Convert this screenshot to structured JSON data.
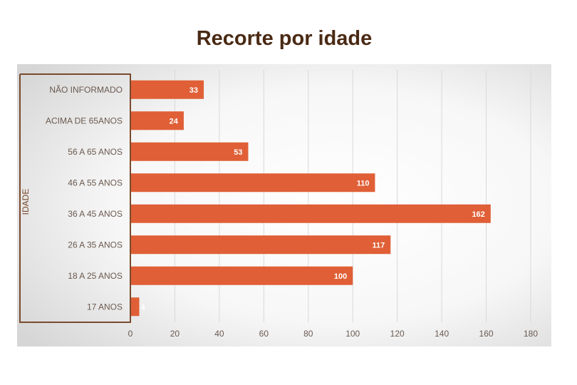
{
  "colors": {
    "bar": "#e05f36",
    "axis": "#7a4a2e",
    "title": "#4a2a14",
    "label": "#6b5a50",
    "grid": "#d9d9d9",
    "bar_label": "#ffffff"
  },
  "chart_data": {
    "type": "bar",
    "orientation": "horizontal",
    "title": "Recorte por idade",
    "ylabel": "IDADE",
    "xlabel": "",
    "categories": [
      "NÃO INFORMADO",
      "ACIMA DE 65ANOS",
      "56 A 65 ANOS",
      "46 A 55 ANOS",
      "36 A 45 ANOS",
      "26 A 35 ANOS",
      "18 A 25 ANOS",
      "17 ANOS"
    ],
    "values": [
      33,
      24,
      53,
      110,
      162,
      117,
      100,
      4
    ],
    "data_labels": [
      "33",
      "24",
      "53",
      "110",
      "162",
      "117",
      "100",
      "4"
    ],
    "xlim": [
      0,
      180
    ],
    "xticks": [
      0,
      20,
      40,
      60,
      80,
      100,
      120,
      140,
      160,
      180
    ],
    "grid": true,
    "legend": "none"
  }
}
